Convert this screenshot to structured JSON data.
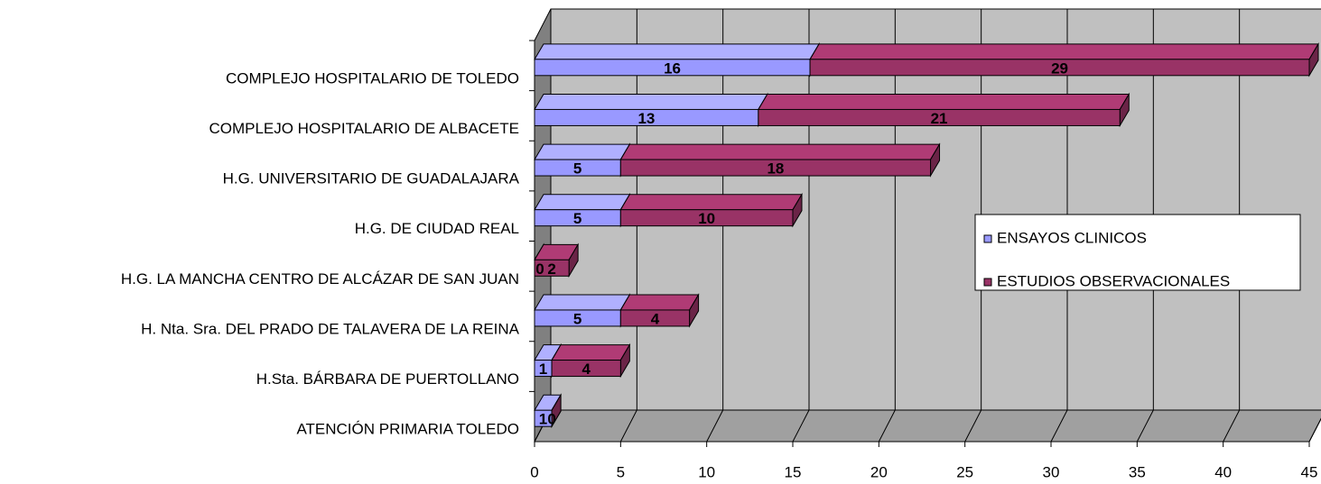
{
  "chart_data": {
    "type": "bar3d_stacked_horizontal",
    "categories": [
      "COMPLEJO HOSPITALARIO DE TOLEDO",
      "COMPLEJO HOSPITALARIO  DE ALBACETE",
      "H.G. UNIVERSITARIO DE GUADALAJARA",
      "H.G. DE CIUDAD REAL",
      "H.G. LA MANCHA CENTRO DE ALCÁZAR DE SAN JUAN",
      "H. Nta. Sra. DEL PRADO DE TALAVERA DE LA REINA",
      "H.Sta. BÁRBARA  DE  PUERTOLLANO",
      "ATENCIÓN PRIMARIA  TOLEDO"
    ],
    "series": [
      {
        "name": "ENSAYOS CLINICOS",
        "color": "#9999ff",
        "values": [
          16,
          13,
          5,
          5,
          0,
          5,
          1,
          1
        ]
      },
      {
        "name": "ESTUDIOS OBSERVACIONALES",
        "color": "#993366",
        "values": [
          29,
          21,
          18,
          10,
          2,
          4,
          4,
          0
        ]
      }
    ],
    "xlim": [
      0,
      45
    ],
    "xticks": [
      0,
      5,
      10,
      15,
      20,
      25,
      30,
      35,
      40,
      45
    ],
    "grid": true,
    "legend": "right"
  }
}
